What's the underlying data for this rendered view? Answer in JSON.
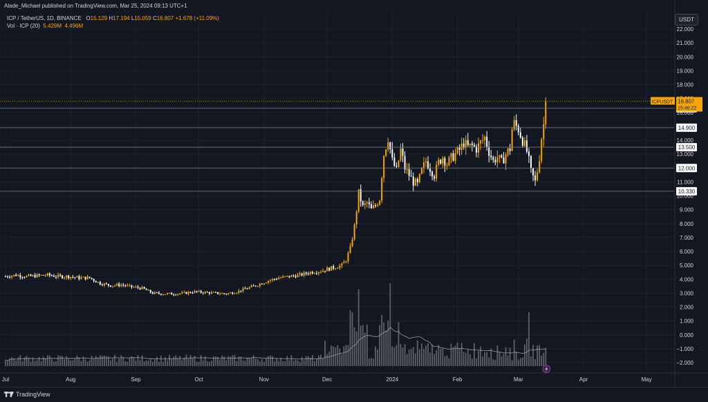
{
  "header": {
    "publisher_line": "Alade_Michael published on TradingView.com, Mar 25, 2024 09:13 UTC+1"
  },
  "legend": {
    "symbol": "ICP / TetherUS, 1D, BINANCE",
    "open_label": "O",
    "open": "15.129",
    "high_label": "H",
    "high": "17.194",
    "low_label": "L",
    "low": "15.059",
    "close_label": "C",
    "close": "16.807",
    "change": "+1.678 (+11.09%)",
    "volume_label": "Vol · ICP (20)",
    "volume": "5.429M",
    "volume_ma": "4.496M"
  },
  "currency_button": "USDT",
  "price_tag": {
    "symbol": "ICPUSDT",
    "price": "16.807",
    "countdown": "15:46:22"
  },
  "footer": {
    "brand": "TradingView"
  },
  "colors": {
    "background": "#131722",
    "up_candle": "#f7a600",
    "down_candle": "#ffffff",
    "grid": "#1e222d",
    "level_line": "#787b86",
    "price_line": "#f7a600",
    "volume_bar": "#5d606b",
    "volume_ma": "#9598a1"
  },
  "chart_data": {
    "type": "candlestick",
    "title": "ICP / TetherUS, 1D, BINANCE",
    "y_axis": {
      "ticks": [
        "22.000",
        "21.000",
        "20.000",
        "19.000",
        "18.000",
        "17.000",
        "16.000",
        "15.000",
        "14.000",
        "13.000",
        "12.000",
        "11.000",
        "10.000",
        "9.000",
        "8.000",
        "7.000",
        "6.000",
        "5.000",
        "4.000",
        "3.000",
        "2.000",
        "1.000",
        "0.000",
        "−1.000",
        "−2.000"
      ],
      "tick_values": [
        22,
        21,
        20,
        19,
        18,
        17,
        16,
        15,
        14,
        13,
        12,
        11,
        10,
        9,
        8,
        7,
        6,
        5,
        4,
        3,
        2,
        1,
        0,
        -1,
        -2
      ],
      "ylim": [
        -2.5,
        22.8
      ]
    },
    "x_axis": {
      "labels": [
        "Jul",
        "Aug",
        "Sep",
        "Oct",
        "Nov",
        "Dec",
        "2024",
        "Feb",
        "Mar",
        "Apr",
        "May"
      ],
      "label_days": [
        0,
        31,
        62,
        92,
        123,
        153,
        184,
        215,
        244,
        275,
        305
      ]
    },
    "horizontal_levels": [
      {
        "value": 16.3,
        "label": "16.300"
      },
      {
        "value": 14.9,
        "label": "14.900"
      },
      {
        "value": 13.5,
        "label": "13.500"
      },
      {
        "value": 12.0,
        "label": "12.000"
      },
      {
        "value": 10.33,
        "label": "10.330"
      }
    ],
    "last_price": 16.807,
    "close_series": [
      [
        0,
        4.2
      ],
      [
        5,
        4.3
      ],
      [
        10,
        4.2
      ],
      [
        15,
        4.25
      ],
      [
        20,
        4.3
      ],
      [
        25,
        4.2
      ],
      [
        30,
        4.2
      ],
      [
        35,
        4.1
      ],
      [
        40,
        4.1
      ],
      [
        45,
        3.7
      ],
      [
        50,
        3.55
      ],
      [
        55,
        3.6
      ],
      [
        60,
        3.45
      ],
      [
        65,
        3.35
      ],
      [
        70,
        3.0
      ],
      [
        75,
        2.95
      ],
      [
        80,
        2.95
      ],
      [
        85,
        3.0
      ],
      [
        90,
        3.1
      ],
      [
        95,
        3.05
      ],
      [
        100,
        3.0
      ],
      [
        105,
        2.95
      ],
      [
        110,
        3.1
      ],
      [
        115,
        3.35
      ],
      [
        120,
        3.6
      ],
      [
        125,
        3.9
      ],
      [
        130,
        4.1
      ],
      [
        135,
        4.2
      ],
      [
        140,
        4.3
      ],
      [
        145,
        4.5
      ],
      [
        150,
        4.6
      ],
      [
        155,
        4.8
      ],
      [
        160,
        5.0
      ],
      [
        162,
        5.4
      ],
      [
        164,
        6.2
      ],
      [
        166,
        7.8
      ],
      [
        168,
        10.2
      ],
      [
        170,
        9.2
      ],
      [
        172,
        9.5
      ],
      [
        174,
        9.0
      ],
      [
        176,
        9.3
      ],
      [
        178,
        9.8
      ],
      [
        179,
        11.5
      ],
      [
        180,
        13.0
      ],
      [
        182,
        14.2
      ],
      [
        184,
        12.5
      ],
      [
        186,
        11.8
      ],
      [
        188,
        13.3
      ],
      [
        190,
        12.0
      ],
      [
        192,
        11.5
      ],
      [
        194,
        11.0
      ],
      [
        196,
        10.8
      ],
      [
        198,
        11.8
      ],
      [
        200,
        12.5
      ],
      [
        202,
        12.0
      ],
      [
        204,
        11.5
      ],
      [
        206,
        12.4
      ],
      [
        208,
        12.8
      ],
      [
        210,
        12.3
      ],
      [
        212,
        12.7
      ],
      [
        214,
        13.0
      ],
      [
        216,
        13.3
      ],
      [
        218,
        13.8
      ],
      [
        220,
        13.5
      ],
      [
        222,
        13.6
      ],
      [
        224,
        13.4
      ],
      [
        226,
        13.8
      ],
      [
        228,
        14.2
      ],
      [
        230,
        13.2
      ],
      [
        232,
        12.5
      ],
      [
        234,
        12.8
      ],
      [
        236,
        12.4
      ],
      [
        238,
        13.0
      ],
      [
        240,
        13.4
      ],
      [
        241,
        14.8
      ],
      [
        242,
        15.2
      ],
      [
        244,
        14.8
      ],
      [
        246,
        14.0
      ],
      [
        248,
        13.2
      ],
      [
        249,
        12.5
      ],
      [
        250,
        11.7
      ],
      [
        252,
        11.0
      ],
      [
        253,
        11.8
      ],
      [
        254,
        12.8
      ],
      [
        255,
        14.2
      ],
      [
        256,
        15.129
      ],
      [
        257,
        16.807
      ]
    ]
  }
}
